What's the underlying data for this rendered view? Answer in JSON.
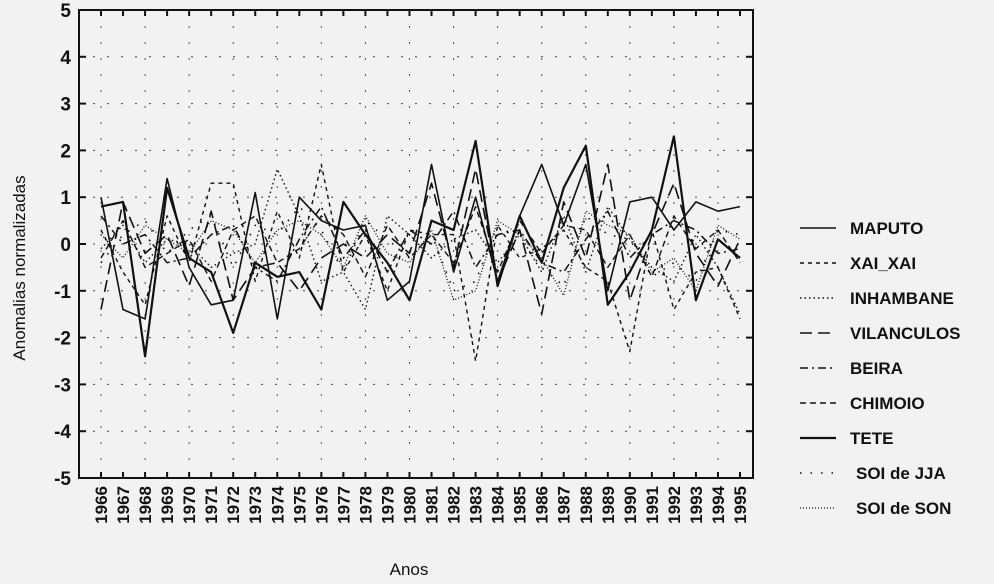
{
  "chart_data": {
    "type": "line",
    "title": "",
    "xlabel": "Anos",
    "ylabel": "Anomalias normalizadas",
    "ylim": [
      -5,
      5
    ],
    "yticks": [
      "5",
      "4",
      "3",
      "2",
      "1",
      "0",
      "-1",
      "-2",
      "-3",
      "-4",
      "-5"
    ],
    "x": [
      "1966",
      "1967",
      "1968",
      "1969",
      "1970",
      "1971",
      "1972",
      "1973",
      "1974",
      "1975",
      "1976",
      "1977",
      "1978",
      "1979",
      "1980",
      "1981",
      "1982",
      "1983",
      "1984",
      "1985",
      "1986",
      "1987",
      "1988",
      "1989",
      "1990",
      "1991",
      "1992",
      "1993",
      "1994",
      "1995"
    ],
    "grid": "dotted",
    "legend_position": "right",
    "series": [
      {
        "name": "MAPUTO",
        "style": "solid",
        "values": [
          1.0,
          -1.4,
          -1.6,
          1.4,
          -0.5,
          -1.3,
          -1.2,
          1.1,
          -1.6,
          1.0,
          0.5,
          0.3,
          0.4,
          -1.2,
          -0.8,
          1.7,
          -0.6,
          1.0,
          -0.8,
          0.6,
          1.7,
          0.4,
          1.7,
          -1.0,
          0.9,
          1.0,
          0.3,
          0.9,
          0.7,
          0.8
        ]
      },
      {
        "name": "XAI_XAI",
        "style": "dashed-short",
        "values": [
          0.3,
          -0.6,
          -1.3,
          0.6,
          -0.4,
          1.3,
          1.3,
          -0.8,
          0.7,
          -0.3,
          1.7,
          -0.6,
          0.2,
          -1.0,
          0.3,
          0.2,
          0.2,
          -2.5,
          0.4,
          -0.3,
          -0.1,
          0.3,
          -0.5,
          -0.8,
          -2.3,
          0.3,
          -1.4,
          -0.6,
          -0.5,
          -1.6
        ]
      },
      {
        "name": "INHAMBANE",
        "style": "dotted",
        "values": [
          -0.1,
          0.4,
          -0.4,
          0.1,
          0.0,
          -0.5,
          -0.2,
          0.0,
          1.6,
          0.6,
          -0.8,
          -0.6,
          -1.4,
          0.6,
          0.2,
          -0.3,
          0.1,
          0.3,
          -0.4,
          0.2,
          -0.6,
          0.6,
          -0.6,
          0.8,
          0.1,
          -0.5,
          -0.8,
          0.2,
          -0.5,
          -1.5
        ]
      },
      {
        "name": "VILANCULOS",
        "style": "dashed-long",
        "values": [
          -1.4,
          0.9,
          -0.2,
          0.2,
          -0.9,
          0.7,
          -1.2,
          -0.5,
          -0.4,
          -1.0,
          -0.3,
          0.0,
          -0.3,
          0.2,
          -0.2,
          1.3,
          -0.5,
          1.6,
          -0.8,
          0.3,
          -1.5,
          0.9,
          -0.3,
          1.7,
          -1.2,
          0.2,
          1.3,
          -0.2,
          -0.9,
          0.1
        ]
      },
      {
        "name": "BEIRA",
        "style": "dash-dot",
        "values": [
          0.6,
          0.0,
          0.2,
          -0.4,
          -0.3,
          0.2,
          0.4,
          -0.5,
          -0.8,
          0.1,
          0.8,
          -0.3,
          0.3,
          -0.6,
          0.3,
          0.0,
          0.7,
          -0.5,
          0.2,
          0.3,
          -0.4,
          -0.6,
          0.1,
          0.7,
          -0.3,
          0.2,
          0.5,
          0.3,
          -0.2,
          -0.1
        ]
      },
      {
        "name": "CHIMOIO",
        "style": "dashed-medium",
        "values": [
          -0.3,
          0.5,
          -0.5,
          -0.2,
          0.1,
          -0.8,
          0.3,
          0.6,
          -0.4,
          -0.1,
          0.6,
          0.2,
          -0.7,
          0.4,
          -0.3,
          0.2,
          -0.4,
          0.8,
          -0.6,
          0.5,
          -0.2,
          0.4,
          0.3,
          -0.5,
          0.2,
          -0.7,
          0.6,
          -0.1,
          0.3,
          -0.4
        ]
      },
      {
        "name": "TETE",
        "style": "solid-bold",
        "values": [
          0.8,
          0.9,
          -2.4,
          1.2,
          -0.3,
          -0.6,
          -1.9,
          -0.4,
          -0.7,
          -0.6,
          -1.4,
          0.9,
          0.2,
          -0.4,
          -1.2,
          0.5,
          0.3,
          2.2,
          -0.9,
          0.6,
          -0.4,
          1.2,
          2.1,
          -1.3,
          -0.6,
          0.3,
          2.3,
          -1.2,
          0.1,
          -0.3
        ]
      },
      {
        "name": "SOI de JJA",
        "style": "sparse-dot",
        "values": [
          -0.4,
          0.2,
          0.5,
          -0.2,
          0.3,
          0.6,
          -0.5,
          0.4,
          0.2,
          0.8,
          0.3,
          -0.6,
          0.5,
          0.1,
          -0.3,
          0.2,
          -1.0,
          -0.8,
          0.4,
          0.1,
          -0.5,
          -0.9,
          0.6,
          0.2,
          0.1,
          -0.7,
          -0.4,
          -0.8,
          0.3,
          0.2
        ]
      },
      {
        "name": "SOI de SON",
        "style": "dense-dot",
        "values": [
          0.2,
          -0.3,
          0.4,
          0.1,
          -0.2,
          0.5,
          0.3,
          -0.4,
          0.3,
          0.5,
          0.2,
          -0.5,
          0.6,
          -0.2,
          -0.4,
          0.3,
          -1.2,
          -1.0,
          0.5,
          0.2,
          -0.3,
          -1.1,
          0.7,
          0.4,
          0.2,
          -0.6,
          -0.3,
          -1.0,
          0.4,
          0.1
        ]
      }
    ]
  }
}
